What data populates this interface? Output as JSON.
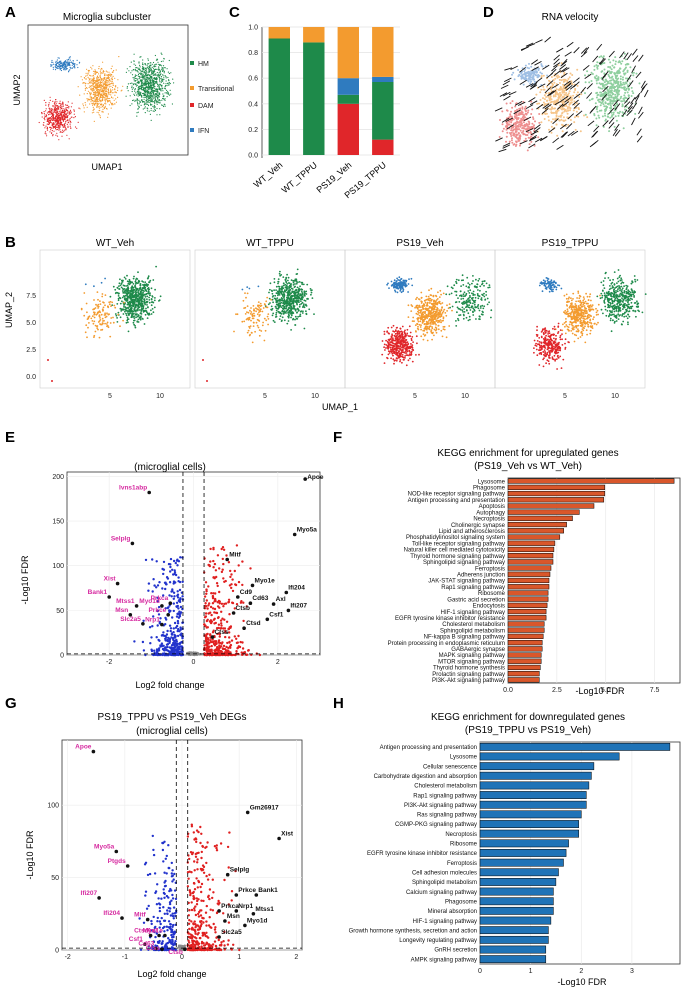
{
  "colors": {
    "HM": "#1e8a4a",
    "Transitional": "#f39b2f",
    "DAM": "#e0262a",
    "IFN": "#2f7bbf",
    "up": "#e02020",
    "down": "#2233cc",
    "bar_up": "#d9572b",
    "bar_down": "#1f73b7"
  },
  "panel_labels": {
    "A": "A",
    "B": "B",
    "C": "C",
    "D": "D",
    "E": "E",
    "F": "F",
    "G": "G",
    "H": "H"
  },
  "panelA": {
    "title": "Microglia subcluster",
    "xlabel": "UMAP1",
    "ylabel": "UMAP2",
    "legend": [
      "HM",
      "Transitional",
      "DAM",
      "IFN"
    ]
  },
  "panelD": {
    "title": "RNA velocity"
  },
  "panelB": {
    "xlabel": "UMAP_1",
    "ylabel": "UMAP_2",
    "facets": [
      "WT_Veh",
      "WT_TPPU",
      "PS19_Veh",
      "PS19_TPPU"
    ],
    "yticks": [
      "0.0",
      "2.5",
      "5.0",
      "7.5"
    ],
    "xticks": [
      "5",
      "10"
    ]
  },
  "chart_data": [
    {
      "type": "bar",
      "id": "C",
      "title": "",
      "stacked": true,
      "categories": [
        "WT_Veh",
        "WT_TPPU",
        "PS19_Veh",
        "PS19_TPPU"
      ],
      "series": [
        {
          "name": "DAM",
          "values": [
            0.0,
            0.0,
            0.4,
            0.12
          ]
        },
        {
          "name": "HM",
          "values": [
            0.91,
            0.88,
            0.07,
            0.45
          ]
        },
        {
          "name": "IFN",
          "values": [
            0.0,
            0.0,
            0.13,
            0.04
          ]
        },
        {
          "name": "Transitional",
          "values": [
            0.09,
            0.12,
            0.4,
            0.39
          ]
        }
      ],
      "yticks": [
        "0.0",
        "0.2",
        "0.4",
        "0.6",
        "0.8",
        "1.0"
      ],
      "ylim": [
        0,
        1
      ]
    },
    {
      "type": "scatter",
      "id": "E",
      "title": "PS19_Veh vs WT_Veh  DEGs",
      "subtitle": "(microglial cells)",
      "xlabel": "Log2 fold change",
      "ylabel": "-Log10 FDR",
      "xlim": [
        -3,
        3
      ],
      "ylim": [
        0,
        205
      ],
      "xticks": [
        "-2",
        "0",
        "2"
      ],
      "yticks": [
        "0",
        "50",
        "100",
        "150",
        "200"
      ],
      "labeled_points": [
        {
          "gene": "Apoe",
          "x": 2.65,
          "y": 197,
          "dir": "up"
        },
        {
          "gene": "Myo5a",
          "x": 2.4,
          "y": 135,
          "dir": "up"
        },
        {
          "gene": "Mitf",
          "x": 0.8,
          "y": 107,
          "dir": "up"
        },
        {
          "gene": "Myo1e",
          "x": 1.4,
          "y": 78,
          "dir": "up"
        },
        {
          "gene": "Ifi204",
          "x": 2.2,
          "y": 70,
          "dir": "up"
        },
        {
          "gene": "Cd9",
          "x": 1.05,
          "y": 65,
          "dir": "up"
        },
        {
          "gene": "Axl",
          "x": 1.9,
          "y": 57,
          "dir": "up"
        },
        {
          "gene": "Cd63",
          "x": 1.35,
          "y": 58,
          "dir": "up"
        },
        {
          "gene": "Ifi207",
          "x": 2.25,
          "y": 50,
          "dir": "up"
        },
        {
          "gene": "Ctsb",
          "x": 0.95,
          "y": 47,
          "dir": "up"
        },
        {
          "gene": "Csf1",
          "x": 1.75,
          "y": 40,
          "dir": "up"
        },
        {
          "gene": "Ctsd",
          "x": 1.2,
          "y": 30,
          "dir": "up"
        },
        {
          "gene": "Ctss",
          "x": 0.45,
          "y": 20,
          "dir": "up"
        },
        {
          "gene": "Ivns1abp",
          "x": -1.05,
          "y": 182,
          "dir": "down"
        },
        {
          "gene": "Selplg",
          "x": -1.45,
          "y": 125,
          "dir": "down"
        },
        {
          "gene": "Xist",
          "x": -1.8,
          "y": 80,
          "dir": "down"
        },
        {
          "gene": "Bank1",
          "x": -2.0,
          "y": 65,
          "dir": "down"
        },
        {
          "gene": "Mtss1",
          "x": -1.35,
          "y": 55,
          "dir": "down"
        },
        {
          "gene": "Myo1d",
          "x": -0.75,
          "y": 55,
          "dir": "down"
        },
        {
          "gene": "Prkca",
          "x": -0.55,
          "y": 58,
          "dir": "down"
        },
        {
          "gene": "Msn",
          "x": -1.5,
          "y": 45,
          "dir": "down"
        },
        {
          "gene": "Prkce",
          "x": -0.6,
          "y": 45,
          "dir": "down"
        },
        {
          "gene": "Slc2a5",
          "x": -1.2,
          "y": 35,
          "dir": "down"
        },
        {
          "gene": "Nrp1",
          "x": -0.75,
          "y": 34,
          "dir": "down"
        }
      ]
    },
    {
      "type": "bar",
      "id": "F",
      "orientation": "horizontal",
      "title": "KEGG enrichment for upregulated genes",
      "subtitle": "(PS19_Veh vs WT_Veh)",
      "xlabel": "-Log10 FDR",
      "xticks": [
        "0.0",
        "2.5",
        "5.0",
        "7.5"
      ],
      "xlim": [
        0,
        8.8
      ],
      "categories": [
        "Lysosome",
        "Phagosome",
        "NOD-like receptor signaling pathway",
        "Antigen processing and presentation",
        "Apoptosis",
        "Autophagy",
        "Necroptosis",
        "Cholinergic synapse",
        "Lipid and atherosclerosis",
        "Phosphatidylinositol signaling system",
        "Toll-like receptor signaling pathway",
        "Natural killer cell mediated cytotoxicity",
        "Thyroid hormone signaling pathway",
        "Sphingolipid signaling pathway",
        "Ferroptosis",
        "Adherens junction",
        "JAK-STAT signaling pathway",
        "Rap1 signaling pathway",
        "Ribosome",
        "Gastric acid secretion",
        "Endocytosis",
        "HIF-1 signaling pathway",
        "EGFR tyrosine kinase inhibitor resistance",
        "Cholesterol metabolism",
        "Sphingolipid metabolism",
        "NF-kappa B signaling pathway",
        "Protein processing in endoplasmic reticulum",
        "GABAergic synapse",
        "MAPK signaling pathway",
        "MTOR signaling pathway",
        "Thyroid hormone synthesis",
        "Prolactin signaling pathway",
        "PI3K-Akt signaling pathway"
      ],
      "values": [
        8.5,
        4.95,
        4.95,
        4.9,
        4.4,
        3.65,
        3.3,
        3.0,
        2.85,
        2.65,
        2.4,
        2.35,
        2.3,
        2.3,
        2.2,
        2.15,
        2.1,
        2.1,
        2.05,
        2.05,
        2.0,
        1.95,
        1.95,
        1.85,
        1.85,
        1.8,
        1.75,
        1.75,
        1.7,
        1.7,
        1.65,
        1.6,
        1.6
      ]
    },
    {
      "type": "scatter",
      "id": "G",
      "title": "PS19_TPPU vs PS19_Veh  DEGs",
      "subtitle": "(microglial cells)",
      "xlabel": "Log2 fold change",
      "ylabel": "-Log10 FDR",
      "xlim": [
        -2.1,
        2.1
      ],
      "ylim": [
        0,
        145
      ],
      "xticks": [
        "-2",
        "-1",
        "0",
        "1",
        "2"
      ],
      "yticks": [
        "0",
        "50",
        "100"
      ],
      "labeled_points": [
        {
          "gene": "Apoe",
          "x": -1.55,
          "y": 137,
          "dir": "down"
        },
        {
          "gene": "Myo5a",
          "x": -1.15,
          "y": 68,
          "dir": "down"
        },
        {
          "gene": "Ptgds",
          "x": -0.95,
          "y": 58,
          "dir": "down"
        },
        {
          "gene": "Ifi207",
          "x": -1.45,
          "y": 36,
          "dir": "down"
        },
        {
          "gene": "Ifi204",
          "x": -1.05,
          "y": 22,
          "dir": "down"
        },
        {
          "gene": "Mitf",
          "x": -0.6,
          "y": 21,
          "dir": "down"
        },
        {
          "gene": "Ctsd",
          "x": -0.55,
          "y": 10,
          "dir": "down"
        },
        {
          "gene": "Axl",
          "x": -0.4,
          "y": 10,
          "dir": "down"
        },
        {
          "gene": "Myo1e",
          "x": -0.3,
          "y": 10,
          "dir": "down"
        },
        {
          "gene": "Csf1",
          "x": -0.65,
          "y": 4,
          "dir": "down"
        },
        {
          "gene": "Cd63",
          "x": -0.45,
          "y": 1,
          "dir": "down"
        },
        {
          "gene": "Ctss",
          "x": -0.35,
          "y": -2,
          "dir": "down"
        },
        {
          "gene": "Ctsb",
          "x": 0.05,
          "y": -6,
          "dir": "down"
        },
        {
          "gene": "Gm26917",
          "x": 1.15,
          "y": 95,
          "dir": "up"
        },
        {
          "gene": "Xist",
          "x": 1.7,
          "y": 77,
          "dir": "up"
        },
        {
          "gene": "Selplg",
          "x": 0.8,
          "y": 52,
          "dir": "up"
        },
        {
          "gene": "Prkce",
          "x": 0.95,
          "y": 38,
          "dir": "up"
        },
        {
          "gene": "Bank1",
          "x": 1.3,
          "y": 38,
          "dir": "up"
        },
        {
          "gene": "Prkca",
          "x": 0.65,
          "y": 27,
          "dir": "up"
        },
        {
          "gene": "Nrp1",
          "x": 0.95,
          "y": 27,
          "dir": "up"
        },
        {
          "gene": "Mtss1",
          "x": 1.25,
          "y": 25,
          "dir": "up"
        },
        {
          "gene": "Msn",
          "x": 0.75,
          "y": 20,
          "dir": "up"
        },
        {
          "gene": "Myo1d",
          "x": 1.1,
          "y": 17,
          "dir": "up"
        },
        {
          "gene": "Slc2a5",
          "x": 0.65,
          "y": 9,
          "dir": "up"
        }
      ]
    },
    {
      "type": "bar",
      "id": "H",
      "orientation": "horizontal",
      "title": "KEGG enrichment for downregulated genes",
      "subtitle": "(PS19_TPPU vs PS19_Veh)",
      "xlabel": "-Log10 FDR",
      "xticks": [
        "0",
        "1",
        "2",
        "3"
      ],
      "xlim": [
        0,
        3.95
      ],
      "categories": [
        "Antigen processing and presentation",
        "Lysosome",
        "Cellular senescence",
        "Carbohydrate digestion and absorption",
        "Cholesterol metabolism",
        "Rap1 signaling pathway",
        "PI3K-Akt signaling pathway",
        "Ras signaling pathway",
        "CGMP-PKG signaling pathway",
        "Necroptosis",
        "Ribosome",
        "EGFR tyrosine kinase inhibitor resistance",
        "Ferroptosis",
        "Cell adhesion molecules",
        "Sphingolipid metabolism",
        "Calcium signaling pathway",
        "Phagosome",
        "Mineral absorption",
        "HIF-1 signaling pathway",
        "Growth hormone synthesis, secretion and action",
        "Longevity regulating pathway",
        "GnRH secretion",
        "AMPK signaling pathway"
      ],
      "values": [
        3.75,
        2.75,
        2.25,
        2.2,
        2.15,
        2.1,
        2.1,
        2.0,
        1.95,
        1.95,
        1.75,
        1.7,
        1.65,
        1.55,
        1.5,
        1.45,
        1.45,
        1.45,
        1.4,
        1.35,
        1.35,
        1.3,
        1.3
      ]
    }
  ]
}
